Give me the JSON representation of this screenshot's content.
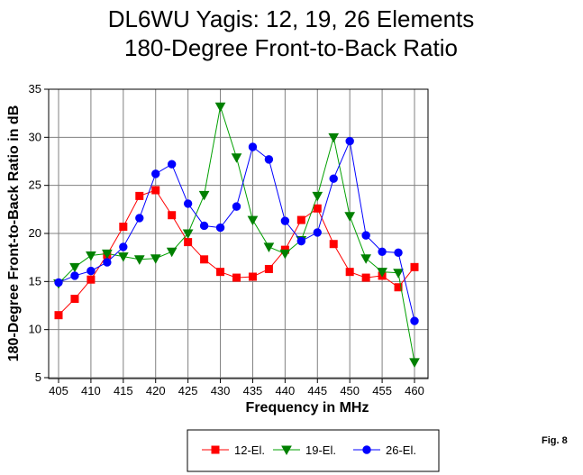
{
  "chart_data": {
    "type": "line",
    "title": "DL6WU Yagis:  12, 19, 26 Elements",
    "subtitle": "180-Degree Front-to-Back Ratio",
    "xlabel": "Frequency in MHz",
    "ylabel": "180-Degree Front-to-Back Ratio in dB",
    "xlim": [
      405,
      460
    ],
    "ylim": [
      5,
      35
    ],
    "x_ticks": [
      405,
      410,
      415,
      420,
      425,
      430,
      435,
      440,
      445,
      450,
      455,
      460
    ],
    "y_ticks": [
      5,
      10,
      15,
      20,
      25,
      30,
      35
    ],
    "grid": true,
    "legend_position": "bottom",
    "annotation": "Fig. 8",
    "x": [
      405,
      407.5,
      410,
      412.5,
      415,
      417.5,
      420,
      422.5,
      425,
      427.5,
      430,
      432.5,
      435,
      437.5,
      440,
      442.5,
      445,
      447.5,
      450,
      452.5,
      455,
      457.5,
      460
    ],
    "series": [
      {
        "name": "12-El.",
        "color": "#ff0000",
        "line_color": "#ff0000",
        "marker": "square",
        "values": [
          11.5,
          13.2,
          15.2,
          17.8,
          20.7,
          23.9,
          24.5,
          21.9,
          19.1,
          17.3,
          16.0,
          15.4,
          15.5,
          16.3,
          18.3,
          21.4,
          22.6,
          18.9,
          16.0,
          15.4,
          15.6,
          14.4,
          16.5
        ]
      },
      {
        "name": "19-El.",
        "color": "#008000",
        "line_color": "#00a000",
        "marker": "triangle-down",
        "values": [
          14.8,
          16.5,
          17.7,
          17.9,
          17.6,
          17.3,
          17.4,
          18.1,
          20.0,
          24.0,
          33.2,
          27.9,
          21.4,
          18.6,
          17.9,
          19.3,
          23.9,
          30.0,
          21.8,
          17.4,
          16.0,
          15.9,
          6.6
        ]
      },
      {
        "name": "26-El.",
        "color": "#0000ff",
        "line_color": "#0000ff",
        "marker": "circle",
        "values": [
          14.9,
          15.6,
          16.1,
          17.0,
          18.6,
          21.6,
          26.2,
          27.2,
          23.1,
          20.8,
          20.6,
          22.8,
          29.0,
          27.7,
          21.3,
          19.2,
          20.1,
          25.7,
          29.6,
          19.8,
          18.1,
          18.0,
          10.9
        ]
      }
    ]
  }
}
